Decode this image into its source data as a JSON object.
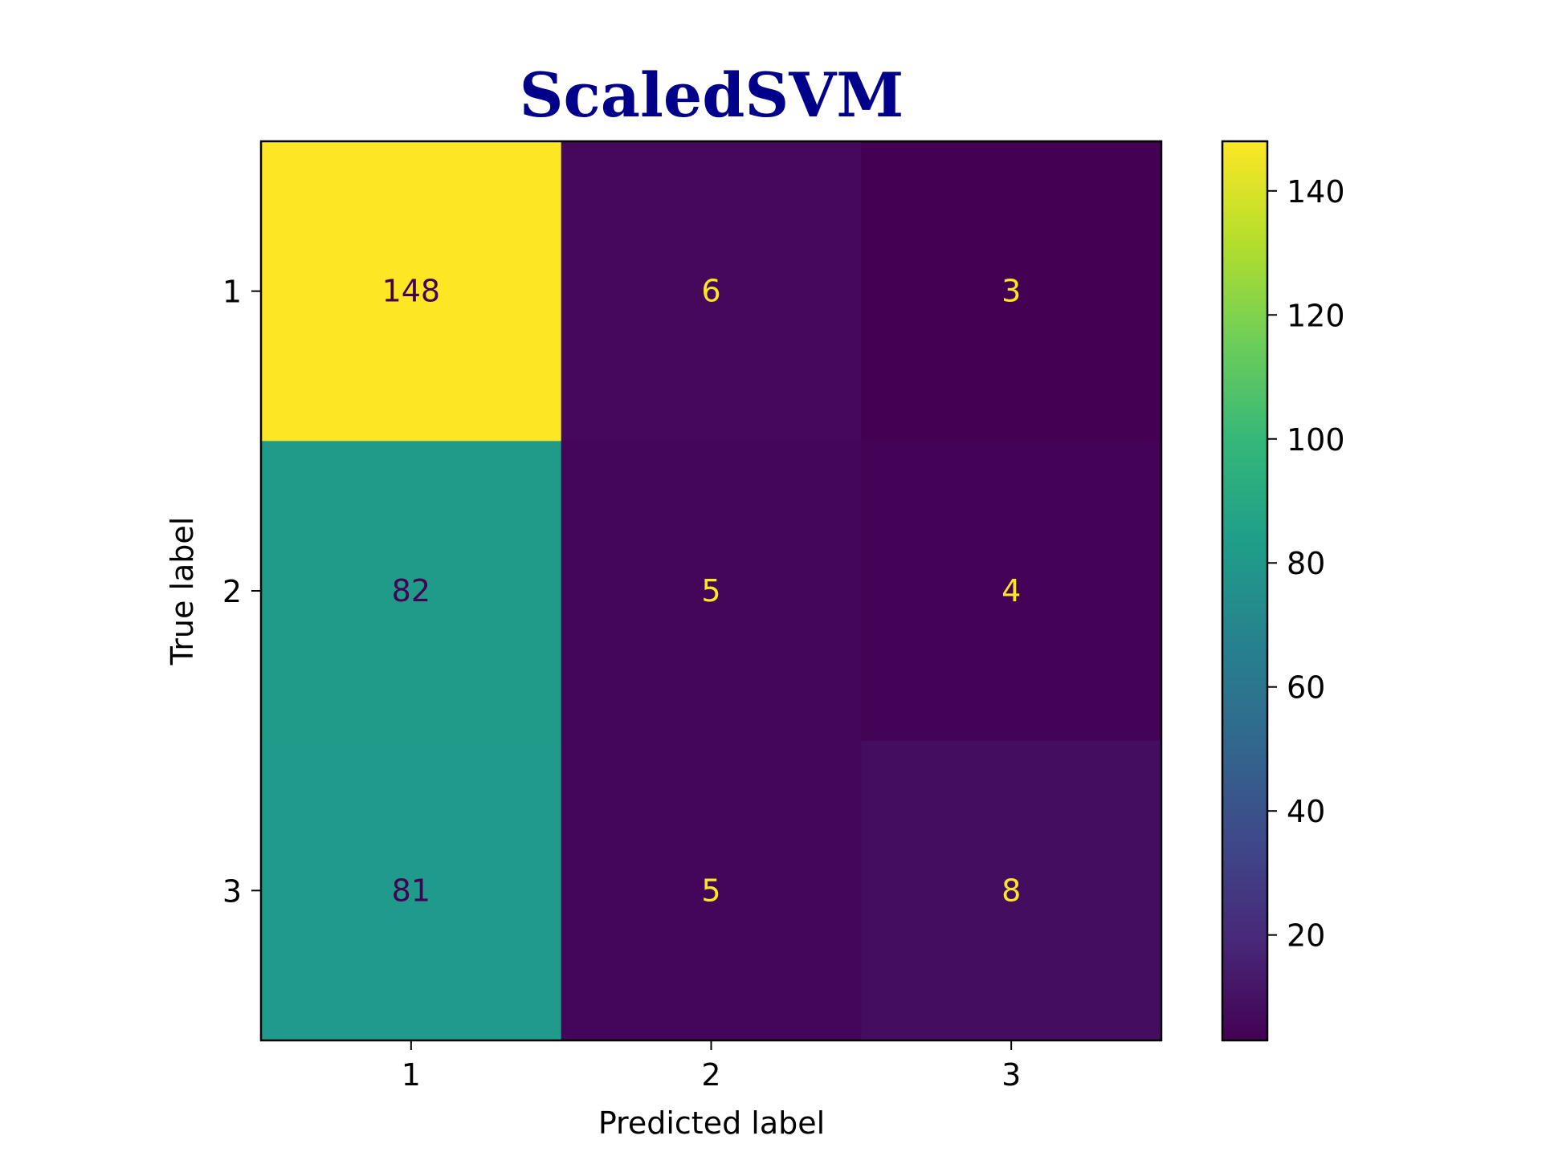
{
  "chart_data": {
    "type": "heatmap",
    "title": "ScaledSVM",
    "title_color": "#00008b",
    "xlabel": "Predicted label",
    "ylabel": "True label",
    "x_categories": [
      "1",
      "2",
      "3"
    ],
    "y_categories": [
      "1",
      "2",
      "3"
    ],
    "matrix": [
      [
        148,
        6,
        3
      ],
      [
        82,
        5,
        4
      ],
      [
        81,
        5,
        8
      ]
    ],
    "colormap": "viridis",
    "value_range": [
      3,
      148
    ],
    "colorbar_ticks": [
      20,
      40,
      60,
      80,
      100,
      120,
      140
    ],
    "label_color_dark": "#440154",
    "label_color_light": "#fde725",
    "grid": false
  }
}
